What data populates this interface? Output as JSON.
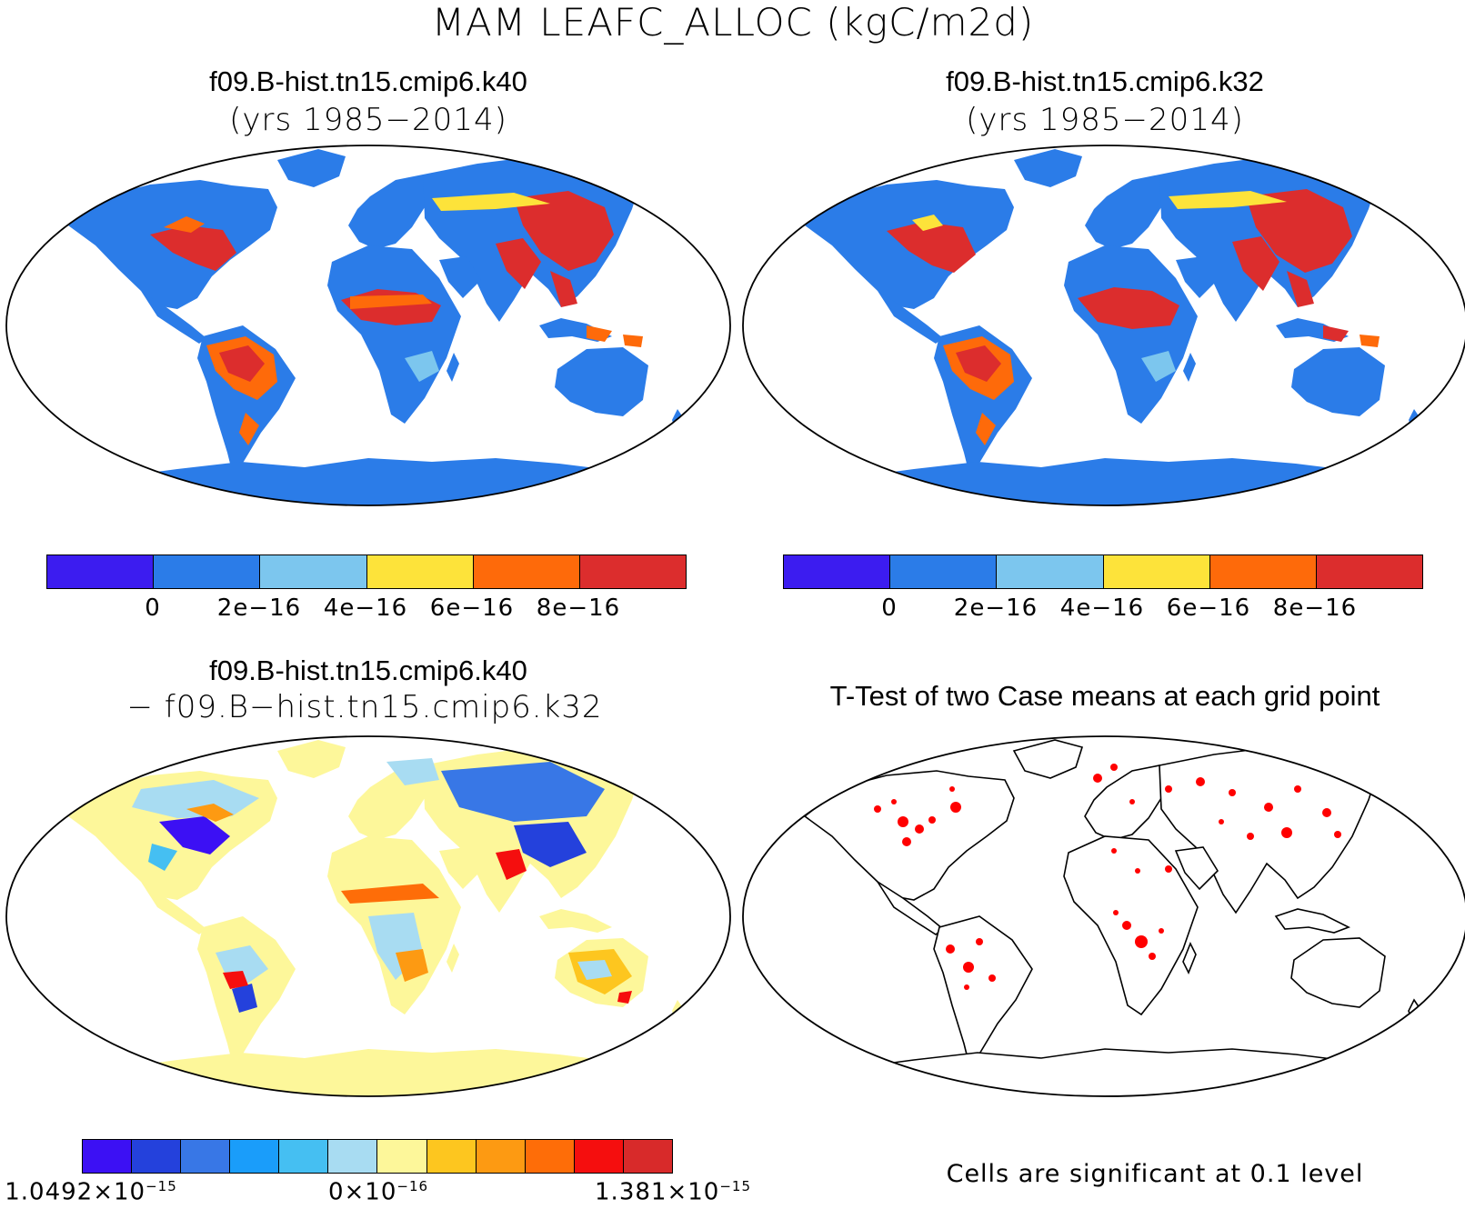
{
  "main_title": "MAM LEAFC_ALLOC (kgC/m2d)",
  "panels": [
    {
      "id": "tl",
      "title": "f09.B-hist.tn15.cmip6.k40",
      "subtitle": "(yrs 1985−2014)"
    },
    {
      "id": "tr",
      "title": "f09.B-hist.tn15.cmip6.k32",
      "subtitle": "(yrs 1985−2014)"
    },
    {
      "id": "bl",
      "title": "f09.B-hist.tn15.cmip6.k40",
      "subtitle": "− f09.B−hist.tn15.cmip6.k32"
    },
    {
      "id": "br",
      "title": "T-Test of two Case means at each grid point",
      "subtitle": ""
    }
  ],
  "colorbar_top": {
    "colors": [
      "#3c1cf0",
      "#2b7ce8",
      "#7cc6ee",
      "#fde33a",
      "#fe6a0a",
      "#dc2d2d"
    ],
    "ticks": [
      "0",
      "2e−16",
      "4e−16",
      "6e−16",
      "8e−16"
    ]
  },
  "colorbar_diff": {
    "colors": [
      "#3c10f4",
      "#2441dc",
      "#3877e6",
      "#1a9dfa",
      "#45bff2",
      "#a8dcf2",
      "#fdf79a",
      "#fdc61f",
      "#fd9a12",
      "#fe6d08",
      "#f50e0e",
      "#d82a2a"
    ],
    "tick_left": {
      "mantissa": "1.0492×10",
      "exp": "−15"
    },
    "tick_mid": {
      "mantissa": "0×10",
      "exp": "−16"
    },
    "tick_right": {
      "mantissa": "1.381×10",
      "exp": "−15"
    }
  },
  "ttest_note": "Cells are significant at 0.1 level",
  "colors": {
    "land_base_top": "#2b7ce8",
    "land_base_diff": "#fdf79a",
    "significant": "#ff0000"
  }
}
